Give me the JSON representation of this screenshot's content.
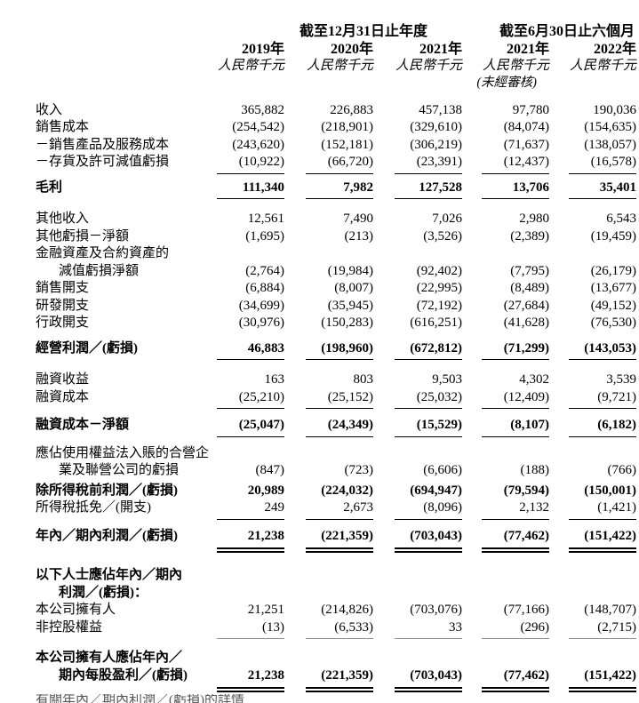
{
  "header": {
    "group_annual": "截至12月31日止年度",
    "group_interim": "截至6月30日止六個月",
    "years": [
      "2019年",
      "2020年",
      "2021年",
      "2021年",
      "2022年"
    ],
    "unit_label": "人民幣千元",
    "unaudited_label": "(未經審核)"
  },
  "table": {
    "rows": [
      {
        "label": "收入",
        "values": [
          "365,882",
          "226,883",
          "457,138",
          "97,780",
          "190,036"
        ]
      },
      {
        "label": "銷售成本",
        "values": [
          "(254,542)",
          "(218,901)",
          "(329,610)",
          "(84,074)",
          "(154,635)"
        ]
      },
      {
        "label": "－銷售產品及服務成本",
        "values": [
          "(243,620)",
          "(152,181)",
          "(306,219)",
          "(71,637)",
          "(138,057)"
        ]
      },
      {
        "label": "－存貨及許可減值虧損",
        "rb": true,
        "values": [
          "(10,922)",
          "(66,720)",
          "(23,391)",
          "(12,437)",
          "(16,578)"
        ]
      },
      {
        "label": "毛利",
        "bold": true,
        "rb": true,
        "gap": 6,
        "values": [
          "111,340",
          "7,982",
          "127,528",
          "13,706",
          "35,401"
        ]
      },
      {
        "label": "其他收入",
        "gap": 13,
        "values": [
          "12,561",
          "7,490",
          "7,026",
          "2,980",
          "6,543"
        ]
      },
      {
        "label": "其他虧損－淨額",
        "values": [
          "(1,695)",
          "(213)",
          "(3,526)",
          "(2,389)",
          "(19,459)"
        ]
      },
      {
        "label": "金融資產及合約資產的",
        "label2": "減值虧損淨額",
        "values": [
          "(2,764)",
          "(19,984)",
          "(92,402)",
          "(7,795)",
          "(26,179)"
        ]
      },
      {
        "label": "銷售開支",
        "values": [
          "(6,884)",
          "(8,007)",
          "(22,995)",
          "(8,489)",
          "(13,677)"
        ]
      },
      {
        "label": "研發開支",
        "values": [
          "(34,699)",
          "(35,945)",
          "(72,192)",
          "(27,684)",
          "(49,152)"
        ]
      },
      {
        "label": "行政開支",
        "values": [
          "(30,976)",
          "(150,283)",
          "(616,251)",
          "(41,628)",
          "(76,530)"
        ]
      },
      {
        "label": "經營利潤／(虧損)",
        "bold": true,
        "rb": true,
        "gap": 9,
        "values": [
          "46,883",
          "(198,960)",
          "(672,812)",
          "(71,299)",
          "(143,053)"
        ]
      },
      {
        "label": "融資收益",
        "gap": 13,
        "values": [
          "163",
          "803",
          "9,503",
          "4,302",
          "3,539"
        ]
      },
      {
        "label": "融資成本",
        "rb": true,
        "values": [
          "(25,210)",
          "(25,152)",
          "(25,032)",
          "(12,409)",
          "(9,721)"
        ]
      },
      {
        "label": "融資成本－淨額",
        "bold": true,
        "rb": true,
        "gap": 9,
        "values": [
          "(25,047)",
          "(24,349)",
          "(15,529)",
          "(8,107)",
          "(6,182)"
        ]
      },
      {
        "label": "應佔使用權益法入賬的合營企",
        "label2": "業及聯營公司的虧損",
        "gap": 9,
        "values": [
          "(847)",
          "(723)",
          "(6,606)",
          "(188)",
          "(766)"
        ]
      },
      {
        "label": "除所得稅前利潤／(虧損)",
        "bold": true,
        "gap": 3,
        "values": [
          "20,989",
          "(224,032)",
          "(694,947)",
          "(79,594)",
          "(150,001)"
        ]
      },
      {
        "label": "所得稅抵免／(開支)",
        "rb": true,
        "values": [
          "249",
          "2,673",
          "(8,096)",
          "2,132",
          "(1,421)"
        ]
      },
      {
        "label": "年內／期內利潤／(虧損)",
        "bold": true,
        "dbl": true,
        "gap": 9,
        "values": [
          "21,238",
          "(221,359)",
          "(703,043)",
          "(77,462)",
          "(151,422)"
        ]
      },
      {
        "label": "以下人士應佔年內／期內",
        "label2": "利潤／(虧損)：",
        "bold": true,
        "gap": 16,
        "values": null
      },
      {
        "label": "本公司擁有人",
        "values": [
          "21,251",
          "(214,826)",
          "(703,076)",
          "(77,166)",
          "(148,707)"
        ]
      },
      {
        "label": "非控股權益",
        "rbthin": true,
        "values": [
          "(13)",
          "(6,533)",
          "33",
          "(296)",
          "(2,715)"
        ]
      },
      {
        "label": "本公司擁有人應佔年內／",
        "label2": "期內每股盈利／(虧損)",
        "bold": true,
        "dbl": true,
        "gap": 12,
        "values": [
          "21,238",
          "(221,359)",
          "(703,043)",
          "(77,462)",
          "(151,422)"
        ]
      }
    ]
  },
  "footer": {
    "clipped_text": "有關年內／期內利潤／(虧損)的詳情"
  },
  "colors": {
    "text": "#000000",
    "background": "#ffffff",
    "thin_rule": "#8f8f8f"
  }
}
